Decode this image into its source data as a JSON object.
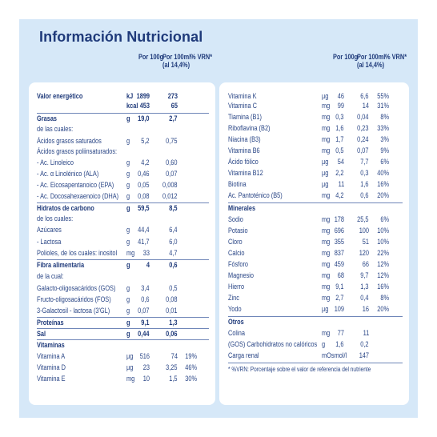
{
  "title": "Información Nutricional",
  "left": {
    "headers": {
      "per100g": "Por 100g",
      "per100ml": "Por 100ml",
      "per100ml_sub": "(al 14,4%)",
      "vrn": "% VRN*"
    },
    "rows": [
      {
        "name": "Valor energético",
        "unit": "kJ",
        "v1": "1899",
        "v2": "273",
        "v3": "",
        "bold": true
      },
      {
        "name": "",
        "unit": "kcal",
        "v1": "453",
        "v2": "65",
        "v3": "",
        "bold": true
      },
      {
        "name": "Grasas",
        "unit": "g",
        "v1": "19,0",
        "v2": "2,7",
        "v3": "",
        "bold": true
      },
      {
        "name": "de las cuales:",
        "unit": "",
        "v1": "",
        "v2": "",
        "v3": "",
        "bold": false
      },
      {
        "name": "Ácidos grasos saturados",
        "unit": "g",
        "v1": "5,2",
        "v2": "0,75",
        "v3": "",
        "bold": false
      },
      {
        "name": "Ácidos grasos poliinsaturados:",
        "unit": "",
        "v1": "",
        "v2": "",
        "v3": "",
        "bold": false
      },
      {
        "name": "- Ac. Linoleico",
        "unit": "g",
        "v1": "4,2",
        "v2": "0,60",
        "v3": "",
        "bold": false
      },
      {
        "name": "- Ac. α Linolénico (ALA)",
        "unit": "g",
        "v1": "0,46",
        "v2": "0,07",
        "v3": "",
        "bold": false
      },
      {
        "name": "- Ac. Eicosapentanoico (EPA)",
        "unit": "g",
        "v1": "0,05",
        "v2": "0,008",
        "v3": "",
        "bold": false
      },
      {
        "name": "- Ac. Docosahexaenoico (DHA)",
        "unit": "g",
        "v1": "0,08",
        "v2": "0,012",
        "v3": "",
        "bold": false
      },
      {
        "name": "Hidratos de carbono",
        "unit": "g",
        "v1": "59,5",
        "v2": "8,5",
        "v3": "",
        "bold": true
      },
      {
        "name": "de los cuales:",
        "unit": "",
        "v1": "",
        "v2": "",
        "v3": "",
        "bold": false
      },
      {
        "name": "Azúcares",
        "unit": "g",
        "v1": "44,4",
        "v2": "6,4",
        "v3": "",
        "bold": false
      },
      {
        "name": "- Lactosa",
        "unit": "g",
        "v1": "41,7",
        "v2": "6,0",
        "v3": "",
        "bold": false
      },
      {
        "name": "Polioles, de los cuales: inositol",
        "unit": "mg",
        "v1": "33",
        "v2": "4,7",
        "v3": "",
        "bold": false
      },
      {
        "name": "Fibra alimentaria",
        "unit": "g",
        "v1": "4",
        "v2": "0,6",
        "v3": "",
        "bold": true
      },
      {
        "name": "de la cual:",
        "unit": "",
        "v1": "",
        "v2": "",
        "v3": "",
        "bold": false
      },
      {
        "name": "Galacto-oligosacáridos (GOS)",
        "unit": "g",
        "v1": "3,4",
        "v2": "0,5",
        "v3": "",
        "bold": false
      },
      {
        "name": "Fructo-oligosacáridos (FOS)",
        "unit": "g",
        "v1": "0,6",
        "v2": "0,08",
        "v3": "",
        "bold": false
      },
      {
        "name": "3-Galactosil - lactosa (3'GL)",
        "unit": "g",
        "v1": "0,07",
        "v2": "0,01",
        "v3": "",
        "bold": false
      },
      {
        "name": "Proteínas",
        "unit": "g",
        "v1": "9,1",
        "v2": "1,3",
        "v3": "",
        "bold": true
      },
      {
        "name": "Sal",
        "unit": "g",
        "v1": "0,44",
        "v2": "0,06",
        "v3": "",
        "bold": true
      },
      {
        "name": "Vitaminas",
        "unit": "",
        "v1": "",
        "v2": "",
        "v3": "",
        "bold": true
      },
      {
        "name": "Vitamina A",
        "unit": "µg",
        "v1": "516",
        "v2": "74",
        "v3": "19%",
        "bold": false
      },
      {
        "name": "Vitamina D",
        "unit": "µg",
        "v1": "23",
        "v2": "3,25",
        "v3": "46%",
        "bold": false
      },
      {
        "name": "Vitamina E",
        "unit": "mg",
        "v1": "10",
        "v2": "1,5",
        "v3": "30%",
        "bold": false
      }
    ]
  },
  "right": {
    "headers": {
      "per100g": "Por 100g",
      "per100ml": "Por 100ml",
      "per100ml_sub": "(al 14,4%)",
      "vrn": "% VRN*"
    },
    "rows": [
      {
        "name": "Vitamina K",
        "unit": "µg",
        "v1": "46",
        "v2": "6,6",
        "v3": "55%",
        "bold": false
      },
      {
        "name": "Vitamina C",
        "unit": "mg",
        "v1": "99",
        "v2": "14",
        "v3": "31%",
        "bold": false
      },
      {
        "name": "Tiamina (B1)",
        "unit": "mg",
        "v1": "0,3",
        "v2": "0,04",
        "v3": "8%",
        "bold": false
      },
      {
        "name": "Riboflavina (B2)",
        "unit": "mg",
        "v1": "1,6",
        "v2": "0,23",
        "v3": "33%",
        "bold": false
      },
      {
        "name": "Niacina (B3)",
        "unit": "mg",
        "v1": "1,7",
        "v2": "0,24",
        "v3": "3%",
        "bold": false
      },
      {
        "name": "Vitamina B6",
        "unit": "mg",
        "v1": "0,5",
        "v2": "0,07",
        "v3": "9%",
        "bold": false
      },
      {
        "name": "Ácido fólico",
        "unit": "µg",
        "v1": "54",
        "v2": "7,7",
        "v3": "6%",
        "bold": false
      },
      {
        "name": "Vitamina B12",
        "unit": "µg",
        "v1": "2,2",
        "v2": "0,3",
        "v3": "40%",
        "bold": false
      },
      {
        "name": "Biotina",
        "unit": "µg",
        "v1": "11",
        "v2": "1,6",
        "v3": "16%",
        "bold": false
      },
      {
        "name": "Ac. Pantoténico (B5)",
        "unit": "mg",
        "v1": "4,2",
        "v2": "0,6",
        "v3": "20%",
        "bold": false
      },
      {
        "name": "Minerales",
        "unit": "",
        "v1": "",
        "v2": "",
        "v3": "",
        "bold": true
      },
      {
        "name": "Sodio",
        "unit": "mg",
        "v1": "178",
        "v2": "25,5",
        "v3": "6%",
        "bold": false
      },
      {
        "name": "Potasio",
        "unit": "mg",
        "v1": "696",
        "v2": "100",
        "v3": "10%",
        "bold": false
      },
      {
        "name": "Cloro",
        "unit": "mg",
        "v1": "355",
        "v2": "51",
        "v3": "10%",
        "bold": false
      },
      {
        "name": "Calcio",
        "unit": "mg",
        "v1": "837",
        "v2": "120",
        "v3": "22%",
        "bold": false
      },
      {
        "name": "Fósforo",
        "unit": "mg",
        "v1": "459",
        "v2": "66",
        "v3": "12%",
        "bold": false
      },
      {
        "name": "Magnesio",
        "unit": "mg",
        "v1": "68",
        "v2": "9,7",
        "v3": "12%",
        "bold": false
      },
      {
        "name": "Hierro",
        "unit": "mg",
        "v1": "9,1",
        "v2": "1,3",
        "v3": "16%",
        "bold": false
      },
      {
        "name": "Zinc",
        "unit": "mg",
        "v1": "2,7",
        "v2": "0,4",
        "v3": "8%",
        "bold": false
      },
      {
        "name": "Yodo",
        "unit": "µg",
        "v1": "109",
        "v2": "16",
        "v3": "20%",
        "bold": false
      },
      {
        "name": "Otros",
        "unit": "",
        "v1": "",
        "v2": "",
        "v3": "",
        "bold": true
      },
      {
        "name": "Colina",
        "unit": "mg",
        "v1": "77",
        "v2": "11",
        "v3": "",
        "bold": false
      },
      {
        "name": "(GOS) Carbohidratos no calóricos",
        "unit": "g",
        "v1": "1,6",
        "v2": "0,2",
        "v3": "",
        "bold": false
      },
      {
        "name": "Carga renal",
        "unit": "mOsmol/l",
        "v1": "",
        "v2": "147",
        "v3": "",
        "bold": false
      }
    ]
  },
  "footnote": "* %VRN: Porcentaje sobre el valor de referencia del nutriente"
}
